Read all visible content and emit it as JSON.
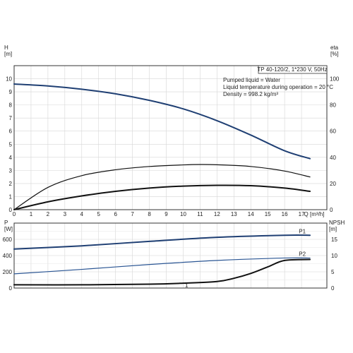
{
  "chart_data": [
    {
      "type": "line",
      "title": "TP 40-120/2, 1*230 V, 50Hz",
      "annotations": [
        "Pumped liquid = Water",
        "Liquid temperature during operation = 20 °C",
        "Density = 998.2 kg/m³"
      ],
      "xlabel": "Q [m³/h]",
      "ylabel": "H\n[m]",
      "y2label": "eta\n[%]",
      "xlim": [
        0,
        18.5
      ],
      "ylim": [
        0,
        11
      ],
      "y2lim": [
        0,
        110
      ],
      "xticks": [
        0,
        1,
        2,
        3,
        4,
        5,
        6,
        7,
        8,
        9,
        10,
        11,
        12,
        13,
        14,
        15,
        16,
        17
      ],
      "yticks": [
        0,
        1,
        2,
        3,
        4,
        5,
        6,
        7,
        8,
        9,
        10
      ],
      "y2ticks": [
        0,
        20,
        40,
        60,
        80,
        100
      ],
      "grid": true,
      "series": [
        {
          "name": "",
          "axis": "left",
          "color": "#1f3f73",
          "width": 2,
          "x": [
            0,
            2,
            4,
            6,
            8,
            10,
            12,
            14,
            16,
            17.5
          ],
          "y": [
            9.6,
            9.45,
            9.2,
            8.85,
            8.35,
            7.7,
            6.8,
            5.7,
            4.5,
            3.9
          ]
        },
        {
          "name": "",
          "axis": "right",
          "color": "#111111",
          "width": 1.2,
          "x": [
            0,
            2,
            4,
            6,
            8,
            10,
            11,
            12,
            14,
            16,
            17.5
          ],
          "y": [
            0,
            17,
            26,
            30.5,
            33,
            34.2,
            34.5,
            34.3,
            33,
            29.5,
            25
          ]
        },
        {
          "name": "",
          "axis": "right",
          "color": "#111111",
          "width": 2,
          "x": [
            0,
            2,
            4,
            6,
            8,
            10,
            12,
            14,
            16,
            17.5
          ],
          "y": [
            0,
            6,
            10.5,
            14,
            16.5,
            18,
            18.6,
            18.3,
            16.5,
            14
          ]
        }
      ]
    },
    {
      "type": "line",
      "xlim": [
        0,
        18.5
      ],
      "ylim": [
        0,
        800
      ],
      "y2lim": [
        0,
        20
      ],
      "ylabel": "P\n[W]",
      "y2label": "NPSH\n[m]",
      "yticks": [
        0,
        200,
        400,
        600
      ],
      "y2ticks": [
        0,
        5,
        10,
        15
      ],
      "grid": true,
      "series": [
        {
          "name": "P1",
          "axis": "left",
          "color": "#1f3f73",
          "width": 2,
          "x": [
            0,
            4,
            8,
            12,
            16,
            17.5
          ],
          "y": [
            480,
            520,
            575,
            625,
            650,
            650
          ]
        },
        {
          "name": "P2",
          "axis": "left",
          "color": "#2a5593",
          "width": 1.2,
          "x": [
            0,
            4,
            8,
            12,
            16,
            17.5
          ],
          "y": [
            175,
            230,
            290,
            340,
            370,
            370
          ]
        },
        {
          "name": "",
          "axis": "right",
          "color": "#111111",
          "width": 2,
          "x": [
            0,
            4,
            8,
            10,
            12,
            13,
            14,
            15,
            16,
            17.5
          ],
          "y": [
            1,
            1,
            1.2,
            1.5,
            2,
            3,
            4.5,
            6.5,
            8.5,
            8.8
          ]
        }
      ],
      "annotations": [
        "1"
      ]
    }
  ]
}
